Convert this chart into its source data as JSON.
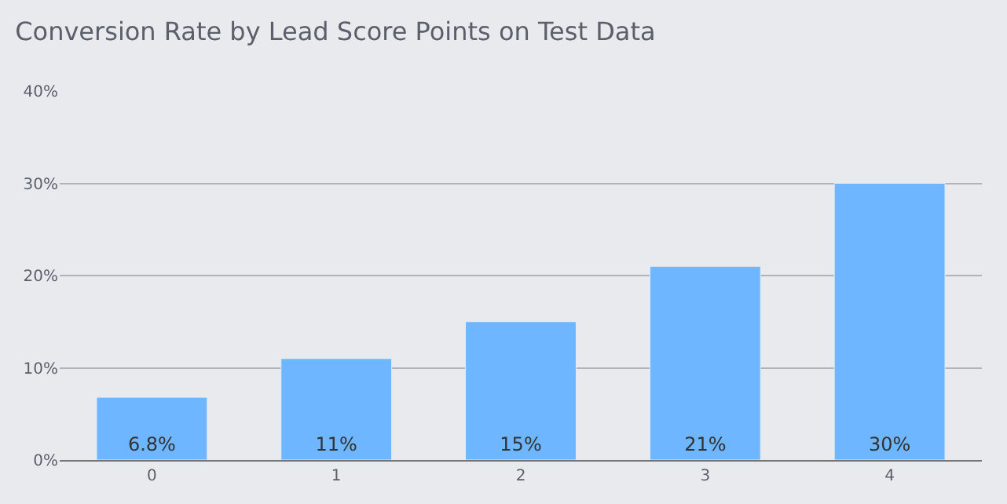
{
  "chart_data": {
    "type": "bar",
    "title": "Conversion Rate by Lead Score Points on Test Data",
    "categories": [
      "0",
      "1",
      "2",
      "3",
      "4"
    ],
    "values": [
      6.8,
      11,
      15,
      21,
      30
    ],
    "value_labels": [
      "6.8%",
      "11%",
      "15%",
      "21%",
      "30%"
    ],
    "color": "#6eb6ff",
    "ylim": [
      0,
      40
    ],
    "yticks": [
      {
        "value": 0,
        "label": "0%"
      },
      {
        "value": 10,
        "label": "10%"
      },
      {
        "value": 20,
        "label": "20%"
      },
      {
        "value": 30,
        "label": "30%"
      },
      {
        "value": 40,
        "label": "40%"
      }
    ],
    "grid": "y"
  }
}
